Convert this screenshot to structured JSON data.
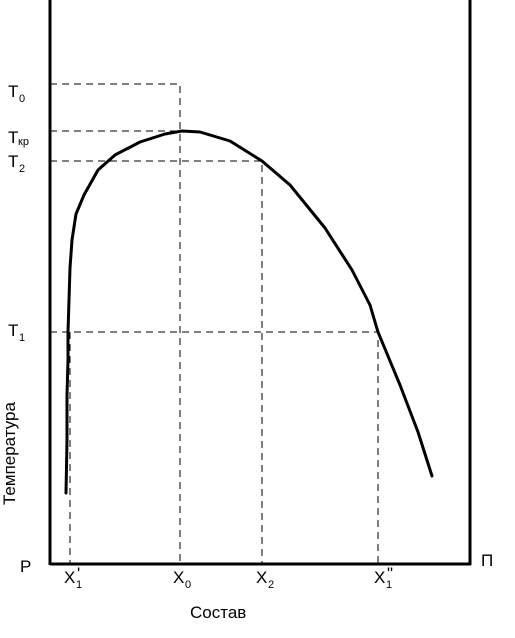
{
  "diagram": {
    "y_axis_label": "Температура",
    "x_axis_label": "Состав",
    "left_corner_label": "P",
    "right_corner_label": "П",
    "y_levels": [
      {
        "main": "T",
        "sub": "0"
      },
      {
        "main": "T",
        "sub": "кр"
      },
      {
        "main": "T",
        "sub": "2"
      },
      {
        "main": "T",
        "sub": "1"
      }
    ],
    "x_marks": [
      {
        "main": "X",
        "sup": "'",
        "sub": "1"
      },
      {
        "main": "X",
        "sup": "",
        "sub": "0"
      },
      {
        "main": "X",
        "sup": "",
        "sub": "2"
      },
      {
        "main": "X",
        "sup": "\"",
        "sub": "1"
      }
    ]
  }
}
